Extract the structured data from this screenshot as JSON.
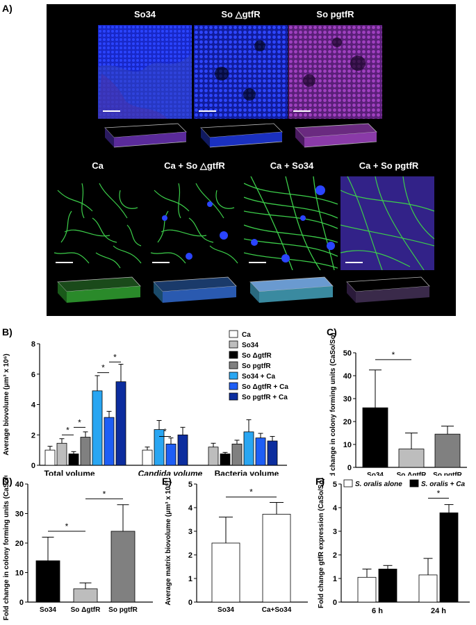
{
  "figure": {
    "panel_labels": {
      "a": "A)",
      "b": "B)",
      "c": "C)",
      "d": "D)",
      "e": "E)",
      "f": "F)"
    }
  },
  "microscopy": {
    "top_labels": [
      "So34",
      "So △gtfR",
      "So pgtfR"
    ],
    "bottom_labels": [
      "Ca",
      "Ca + So △gtfR",
      "Ca + So34",
      "Ca + So pgtfR"
    ],
    "colors": {
      "bacteria": "#2030e0",
      "candida": "#38d048",
      "pgtfR": "#a040c0",
      "background": "#000000"
    }
  },
  "chart_data": [
    {
      "id": "B",
      "type": "bar",
      "ylabel": "Average biovolume (μm³ x 10⁶)",
      "yticks": [
        "0",
        "2",
        "4",
        "6",
        "8"
      ],
      "ylim": [
        0,
        8
      ],
      "groups": [
        "Total volume",
        "Candida volume",
        "Bacteria volume"
      ],
      "legend": [
        "Ca",
        "So34",
        "So ΔgtfR",
        "So pgtfR",
        "So34 + Ca",
        "So ΔgtfR + Ca",
        "So pgtfR + Ca"
      ],
      "colors": [
        "#ffffff",
        "#bdbdbd",
        "#000000",
        "#808080",
        "#29a6f2",
        "#1e5ef5",
        "#0c2d9e"
      ],
      "values": [
        [
          1.0,
          1.45,
          0.75,
          1.85,
          4.9,
          3.15,
          5.5
        ],
        [
          1.0,
          null,
          null,
          null,
          2.35,
          1.4,
          2.0
        ],
        [
          null,
          1.2,
          0.75,
          1.4,
          2.2,
          1.8,
          1.6
        ]
      ],
      "errors": [
        [
          0.25,
          0.3,
          0.15,
          0.35,
          1.0,
          0.4,
          1.15
        ],
        [
          0.2,
          null,
          null,
          null,
          0.6,
          0.4,
          0.5
        ],
        [
          null,
          0.25,
          0.1,
          0.25,
          0.8,
          0.3,
          0.3
        ]
      ],
      "significance": "*"
    },
    {
      "id": "C",
      "type": "bar",
      "ylabel": "Fold change in colony forming units (CaSo/So)",
      "yticks": [
        "0",
        "10",
        "20",
        "30",
        "40",
        "50"
      ],
      "ylim": [
        0,
        50
      ],
      "categories": [
        "So34",
        "So ΔgtfR",
        "So pgtfR"
      ],
      "values": [
        26,
        8,
        14.5
      ],
      "errors": [
        16.5,
        7,
        3.5
      ],
      "colors": [
        "#000000",
        "#bdbdbd",
        "#808080"
      ],
      "significance": "*"
    },
    {
      "id": "D",
      "type": "bar",
      "ylabel": "Fold change in colony forming units (CaSo/Ca)",
      "yticks": [
        "0",
        "10",
        "20",
        "30",
        "40"
      ],
      "ylim": [
        0,
        40
      ],
      "categories": [
        "So34",
        "So ΔgtfR",
        "So pgtfR"
      ],
      "values": [
        14,
        4.5,
        24
      ],
      "errors": [
        8,
        2,
        9
      ],
      "colors": [
        "#000000",
        "#bdbdbd",
        "#808080"
      ],
      "significance": "*"
    },
    {
      "id": "E",
      "type": "bar",
      "ylabel": "Average matrix biovolume (μm³ x 10⁵)",
      "yticks": [
        "0",
        "1",
        "2",
        "3",
        "4",
        "5"
      ],
      "ylim": [
        0,
        5
      ],
      "categories": [
        "So34",
        "Ca+So34"
      ],
      "values": [
        2.5,
        3.72
      ],
      "errors": [
        1.1,
        0.5
      ],
      "colors": [
        "#ffffff",
        "#ffffff"
      ],
      "significance": "*"
    },
    {
      "id": "F",
      "type": "bar",
      "ylabel": "Fold change gtfR expression (CaSo/So)",
      "yticks": [
        "0",
        "1",
        "2",
        "3",
        "4",
        "5"
      ],
      "ylim": [
        0,
        5
      ],
      "categories": [
        "6 h",
        "24 h"
      ],
      "legend": [
        "S. oralis alone",
        "S. oralis + Ca"
      ],
      "colors": [
        "#ffffff",
        "#000000"
      ],
      "values": [
        [
          1.05,
          1.4
        ],
        [
          1.15,
          3.78
        ]
      ],
      "errors": [
        [
          0.35,
          0.15
        ],
        [
          0.7,
          0.35
        ]
      ],
      "significance": "*"
    }
  ]
}
